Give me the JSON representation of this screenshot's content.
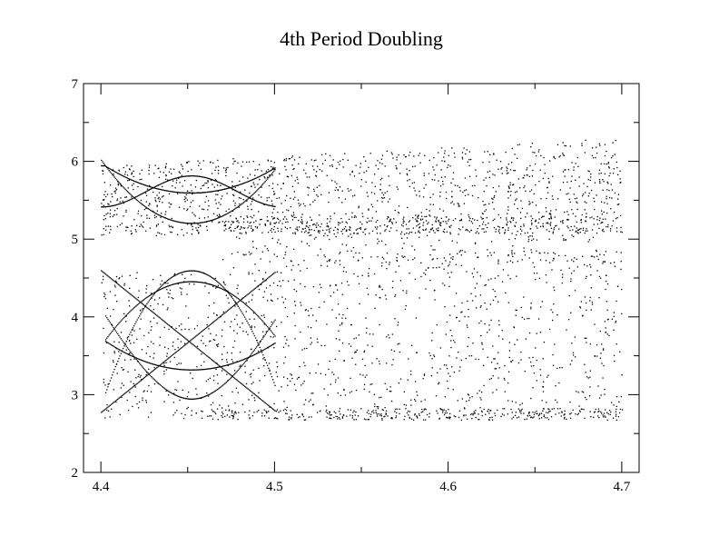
{
  "chart_data": {
    "type": "scatter",
    "title": "4th Period Doubling",
    "xlabel": "",
    "ylabel": "",
    "xlim": [
      4.39,
      4.71
    ],
    "ylim": [
      2,
      7
    ],
    "x_ticks": [
      "4.4",
      "4.5",
      "4.6",
      "4.7"
    ],
    "y_ticks": [
      "2",
      "3",
      "4",
      "5",
      "6",
      "7"
    ],
    "grid": false,
    "legend": "none",
    "series": [
      {
        "color": "#000000",
        "marker": "dot",
        "x_range": [
          4.4,
          4.7
        ],
        "y_range": [
          2.65,
          6.35
        ],
        "description_of_visible_structure": "Bifurcation-like dot cloud",
        "structure": {
          "upper_band": {
            "y": [
              5.0,
              6.35
            ]
          },
          "gap_region": {
            "y": [
              4.65,
              5.05
            ],
            "x": [
              4.4,
              4.475
            ]
          },
          "lower_band": {
            "y": [
              2.65,
              4.65
            ]
          },
          "loops": [
            {
              "x_center": 4.452,
              "upper_y": [
                5.2,
                5.95
              ],
              "lower_y": [
                2.95,
                4.6
              ]
            },
            {
              "x_center": 4.452,
              "inner_y": [
                3.7,
                4.5
              ]
            }
          ]
        }
      }
    ]
  }
}
